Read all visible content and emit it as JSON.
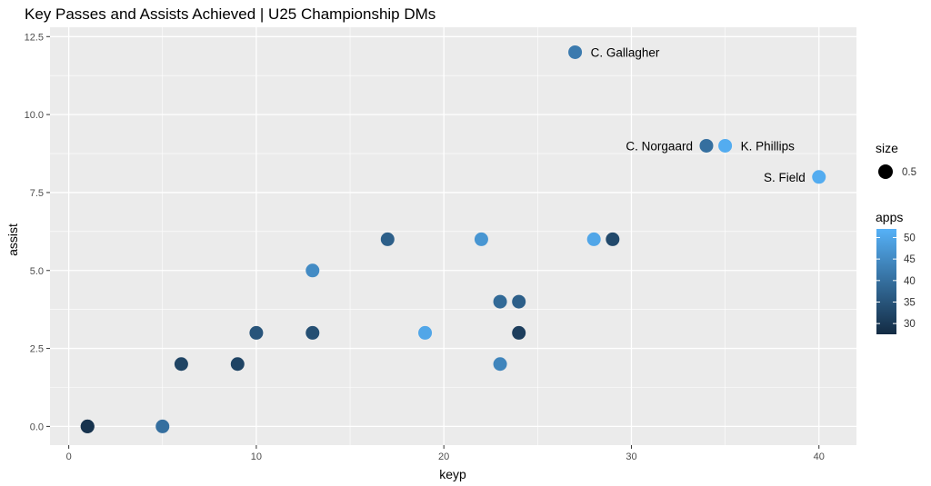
{
  "chart_data": {
    "type": "scatter",
    "title": "Key Passes and Assists Achieved | U25 Championship DMs",
    "xlabel": "keyp",
    "ylabel": "assist",
    "xlim": [
      -1,
      42
    ],
    "ylim": [
      -0.6,
      12.8
    ],
    "x_ticks": [
      0,
      10,
      20,
      30,
      40
    ],
    "y_ticks": [
      0.0,
      2.5,
      5.0,
      7.5,
      10.0,
      12.5
    ],
    "x_tick_labels": [
      "0",
      "10",
      "20",
      "30",
      "40"
    ],
    "y_tick_labels": [
      "0.0",
      "2.5",
      "5.0",
      "7.5",
      "10.0",
      "12.5"
    ],
    "grid": true,
    "background": "#ebebeb",
    "grid_color": "#ffffff",
    "points": [
      {
        "x": 1,
        "y": 0,
        "apps": 28
      },
      {
        "x": 1,
        "y": 0,
        "apps": 29
      },
      {
        "x": 5,
        "y": 0,
        "apps": 40
      },
      {
        "x": 6,
        "y": 2,
        "apps": 32
      },
      {
        "x": 9,
        "y": 2,
        "apps": 32
      },
      {
        "x": 10,
        "y": 3,
        "apps": 35
      },
      {
        "x": 13,
        "y": 3,
        "apps": 34
      },
      {
        "x": 13,
        "y": 5,
        "apps": 45
      },
      {
        "x": 17,
        "y": 6,
        "apps": 37
      },
      {
        "x": 19,
        "y": 3,
        "apps": 50
      },
      {
        "x": 22,
        "y": 6,
        "apps": 47
      },
      {
        "x": 23,
        "y": 2,
        "apps": 44
      },
      {
        "x": 23,
        "y": 4,
        "apps": 39
      },
      {
        "x": 24,
        "y": 4,
        "apps": 37
      },
      {
        "x": 24,
        "y": 3,
        "apps": 31
      },
      {
        "x": 27,
        "y": 12,
        "apps": 42,
        "label": "C. Gallagher",
        "label_side": "right"
      },
      {
        "x": 28,
        "y": 6,
        "apps": 50
      },
      {
        "x": 29,
        "y": 6,
        "apps": 33
      },
      {
        "x": 34,
        "y": 9,
        "apps": 40,
        "label": "C. Norgaard",
        "label_side": "left"
      },
      {
        "x": 35,
        "y": 9,
        "apps": 51,
        "label": "K. Phillips",
        "label_side": "right"
      },
      {
        "x": 40,
        "y": 8,
        "apps": 51,
        "label": "S. Field",
        "label_side": "left"
      }
    ],
    "legend": {
      "placement": "right",
      "size": {
        "title": "size",
        "label": "0.5"
      },
      "apps": {
        "title": "apps",
        "min": 27.5,
        "max": 52,
        "ticks": [
          30,
          35,
          40,
          45,
          50
        ],
        "tick_labels": [
          "30",
          "35",
          "40",
          "45",
          "50"
        ],
        "low_color": "#132b43",
        "high_color": "#56b1f7"
      }
    }
  }
}
